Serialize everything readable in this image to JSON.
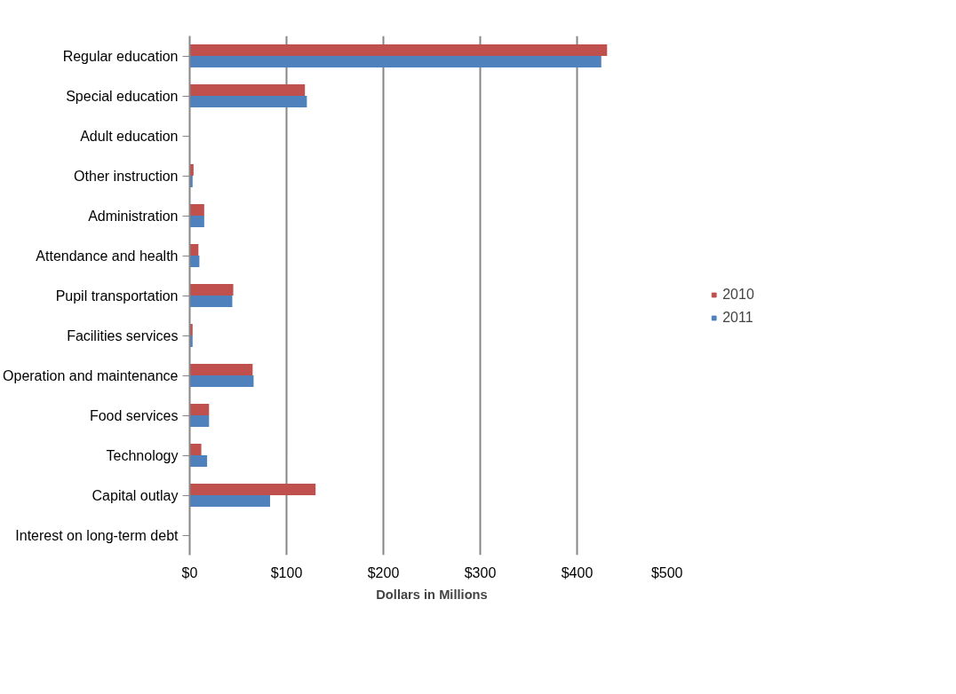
{
  "chart_data": {
    "type": "bar",
    "orientation": "horizontal",
    "xlabel": "Dollars in Millions",
    "categories": [
      "Regular education",
      "Special education",
      "Adult education",
      "Other instruction",
      "Administration",
      "Attendance and health",
      "Pupil transportation",
      "Facilities services",
      "Operation and maintenance",
      "Food services",
      "Technology",
      "Capital outlay",
      "Interest on long-term debt"
    ],
    "series": [
      {
        "name": "2010",
        "color": "#c0504d",
        "values": [
          431,
          119,
          0,
          4,
          15,
          9,
          45,
          3,
          65,
          20,
          12,
          130,
          0
        ]
      },
      {
        "name": "2011",
        "color": "#4f81bd",
        "values": [
          425,
          121,
          0,
          3,
          15,
          10,
          44,
          3,
          66,
          20,
          18,
          83,
          0
        ]
      }
    ],
    "xlim": [
      0,
      500
    ],
    "xticks": [
      {
        "value": 0,
        "label": "$0"
      },
      {
        "value": 100,
        "label": "$100"
      },
      {
        "value": 200,
        "label": "$200"
      },
      {
        "value": 300,
        "label": "$300"
      },
      {
        "value": 400,
        "label": "$400"
      },
      {
        "value": 500,
        "label": "$500"
      }
    ],
    "grid": "x",
    "legend": "right"
  }
}
